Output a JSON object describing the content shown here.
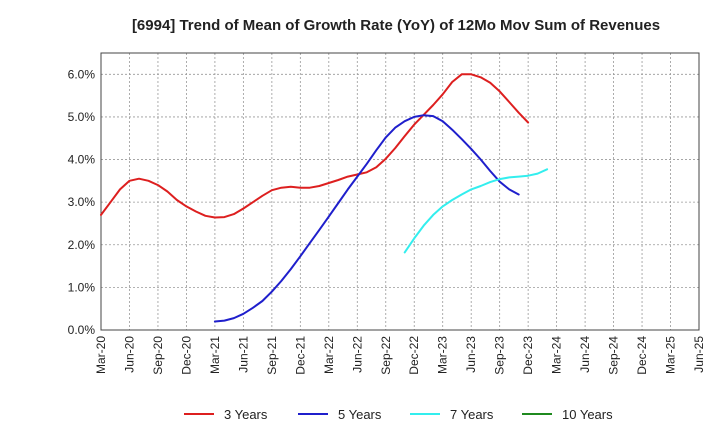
{
  "chart_data": {
    "type": "line",
    "title": "[6994]  Trend of Mean of Growth Rate (YoY) of 12Mo Mov Sum of Revenues",
    "xlabel": "",
    "ylabel": "",
    "ylim": [
      0,
      6.5
    ],
    "yticks": [
      0,
      1,
      2,
      3,
      4,
      5,
      6
    ],
    "ytick_labels": [
      "0.0%",
      "1.0%",
      "2.0%",
      "3.0%",
      "4.0%",
      "5.0%",
      "6.0%"
    ],
    "x_count": 21,
    "x_tick_labels": [
      "Mar-20",
      "Jun-20",
      "Sep-20",
      "Dec-20",
      "Mar-21",
      "Jun-21",
      "Sep-21",
      "Dec-21",
      "Mar-22",
      "Jun-22",
      "Sep-22",
      "Dec-22",
      "Mar-23",
      "Jun-23",
      "Sep-23",
      "Dec-23",
      "Mar-24",
      "Jun-24",
      "Sep-24",
      "Dec-24",
      "Mar-25",
      "Jun-25"
    ],
    "grid": true,
    "legend_position": "bottom",
    "series": [
      {
        "name": "3 Years",
        "color": "#dd1f1f",
        "start_index": 0,
        "values": [
          2.7,
          3.0,
          3.3,
          3.5,
          3.55,
          3.5,
          3.4,
          3.25,
          3.05,
          2.9,
          2.78,
          2.68,
          2.64,
          2.65,
          2.72,
          2.85,
          3.0,
          3.15,
          3.28,
          3.34,
          3.36,
          3.34,
          3.34,
          3.38,
          3.45,
          3.52,
          3.6,
          3.65,
          3.7,
          3.82,
          4.02,
          4.27,
          4.55,
          4.82,
          5.05,
          5.28,
          5.53,
          5.82,
          6.0,
          6.0,
          5.93,
          5.8,
          5.6,
          5.35,
          5.1,
          4.87
        ]
      },
      {
        "name": "5 Years",
        "color": "#1f1fcc",
        "start_index": 12,
        "values": [
          0.2,
          0.22,
          0.28,
          0.38,
          0.52,
          0.68,
          0.9,
          1.15,
          1.43,
          1.73,
          2.04,
          2.35,
          2.66,
          2.98,
          3.3,
          3.6,
          3.9,
          4.22,
          4.52,
          4.75,
          4.9,
          5.0,
          5.04,
          5.02,
          4.9,
          4.7,
          4.48,
          4.25,
          4.0,
          3.73,
          3.48,
          3.3,
          3.18
        ]
      },
      {
        "name": "7 Years",
        "color": "#33eeee",
        "start_index": 32,
        "values": [
          1.82,
          2.15,
          2.45,
          2.7,
          2.9,
          3.05,
          3.18,
          3.3,
          3.38,
          3.47,
          3.54,
          3.58,
          3.6,
          3.62,
          3.67,
          3.77
        ]
      },
      {
        "name": "10 Years",
        "color": "#1f8a1f",
        "start_index": 0,
        "values": []
      }
    ]
  }
}
